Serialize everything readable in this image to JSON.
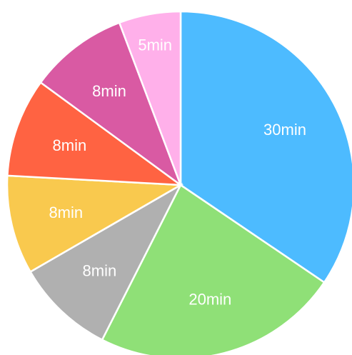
{
  "chart_data": {
    "type": "pie",
    "start_angle_deg": 0,
    "direction": "clockwise",
    "slices": [
      {
        "label": "30min",
        "value": 30,
        "color": "#4dbbff"
      },
      {
        "label": "20min",
        "value": 20,
        "color": "#8fe077"
      },
      {
        "label": "8min",
        "value": 8,
        "color": "#b0b0b0"
      },
      {
        "label": "8min",
        "value": 8,
        "color": "#f9c94e"
      },
      {
        "label": "8min",
        "value": 8,
        "color": "#ff6342"
      },
      {
        "label": "8min",
        "value": 8,
        "color": "#d95aa3"
      },
      {
        "label": "5min",
        "value": 5,
        "color": "#ffb0ea"
      }
    ]
  }
}
